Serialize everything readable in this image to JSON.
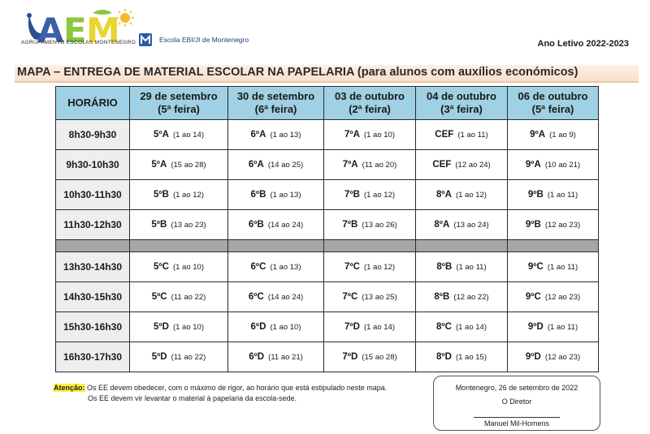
{
  "header": {
    "logo_text": "AGRUPAMENTO ESCOLAS MONTENEGRO",
    "school_name": "Escola EBI/JI de Montenegro",
    "school_year": "Ano Letivo 2022-2023"
  },
  "title": "MAPA – ENTREGA DE MATERIAL ESCOLAR NA PAPELARIA (para alunos com auxílios económicos)",
  "table": {
    "time_header": "HORÁRIO",
    "days": [
      {
        "date": "29 de setembro",
        "weekday": "(5ª feira)"
      },
      {
        "date": "30 de setembro",
        "weekday": "(6ª feira)"
      },
      {
        "date": "03 de outubro",
        "weekday": "(2ª feira)"
      },
      {
        "date": "04 de outubro",
        "weekday": "(3ª feira)"
      },
      {
        "date": "06 de outubro",
        "weekday": "(5ª feira)"
      }
    ],
    "rows": [
      {
        "time": "8h30-9h30",
        "cells": [
          {
            "class": "5ºA",
            "range": "(1 ao 14)"
          },
          {
            "class": "6ºA",
            "range": "(1 ao 13)"
          },
          {
            "class": "7ºA",
            "range": "(1 ao 10)"
          },
          {
            "class": "CEF",
            "range": "(1 ao 11)"
          },
          {
            "class": "9ºA",
            "range": "(1 ao 9)"
          }
        ]
      },
      {
        "time": "9h30-10h30",
        "cells": [
          {
            "class": "5ºA",
            "range": "(15 ao 28)"
          },
          {
            "class": "6ºA",
            "range": "(14 ao 25)"
          },
          {
            "class": "7ºA",
            "range": "(11 ao 20)"
          },
          {
            "class": "CEF",
            "range": "(12 ao 24)"
          },
          {
            "class": "9ºA",
            "range": "(10 ao 21)"
          }
        ]
      },
      {
        "time": "10h30-11h30",
        "cells": [
          {
            "class": "5ºB",
            "range": "(1 ao 12)"
          },
          {
            "class": "6ºB",
            "range": "(1 ao 13)"
          },
          {
            "class": "7ºB",
            "range": "(1 ao 12)"
          },
          {
            "class": "8ºA",
            "range": "(1 ao 12)"
          },
          {
            "class": "9ºB",
            "range": "(1 ao 11)"
          }
        ]
      },
      {
        "time": "11h30-12h30",
        "cells": [
          {
            "class": "5ºB",
            "range": "(13 ao 23)"
          },
          {
            "class": "6ºB",
            "range": "(14 ao 24)"
          },
          {
            "class": "7ºB",
            "range": "(13 ao 26)"
          },
          {
            "class": "8ºA",
            "range": "(13 ao 24)"
          },
          {
            "class": "9ºB",
            "range": "(12 ao 23)"
          }
        ]
      },
      {
        "time": "13h30-14h30",
        "cells": [
          {
            "class": "5ºC",
            "range": "(1 ao 10)"
          },
          {
            "class": "6ºC",
            "range": "(1 ao 13)"
          },
          {
            "class": "7ºC",
            "range": "(1 ao 12)"
          },
          {
            "class": "8ºB",
            "range": "(1 ao 11)"
          },
          {
            "class": "9ºC",
            "range": "(1 ao 11)"
          }
        ]
      },
      {
        "time": "14h30-15h30",
        "cells": [
          {
            "class": "5ºC",
            "range": "(11 ao 22)"
          },
          {
            "class": "6ºC",
            "range": "(14 ao 24)"
          },
          {
            "class": "7ºC",
            "range": "(13 ao 25)"
          },
          {
            "class": "8ºB",
            "range": "(12 ao 22)"
          },
          {
            "class": "9ºC",
            "range": "(12 ao 23)"
          }
        ]
      },
      {
        "time": "15h30-16h30",
        "cells": [
          {
            "class": "5ºD",
            "range": "(1 ao 10)"
          },
          {
            "class": "6ºD",
            "range": "(1 ao 10)"
          },
          {
            "class": "7ºD",
            "range": "(1 ao 14)"
          },
          {
            "class": "8ºC",
            "range": "(1 ao 14)"
          },
          {
            "class": "9ºD",
            "range": "(1 ao 11)"
          }
        ]
      },
      {
        "time": "16h30-17h30",
        "cells": [
          {
            "class": "5ºD",
            "range": "(11 ao 22)"
          },
          {
            "class": "6ºD",
            "range": "(11 ao 21)"
          },
          {
            "class": "7ºD",
            "range": "(15 ao 28)"
          },
          {
            "class": "8ºD",
            "range": "(1 ao 15)"
          },
          {
            "class": "9ºD",
            "range": "(12 ao 23)"
          }
        ]
      }
    ]
  },
  "note": {
    "label": "Atenção:",
    "line1": "Os EE devem obedecer, com o máximo de rigor, ao horário que está estipulado neste mapa.",
    "line2": "Os EE devem vir levantar o material à papelaria da escola-sede."
  },
  "signature": {
    "date": "Montenegro, 26 de setembro de 2022",
    "role": "O Diretor",
    "name": "Manuel Mil-Homens"
  },
  "colors": {
    "header_cells": "#9fd0e3",
    "time_cells": "#eeeeee",
    "break_row": "#a6a6a6",
    "title_band": "#fbe8d6",
    "note_highlight": "#fff33d"
  }
}
